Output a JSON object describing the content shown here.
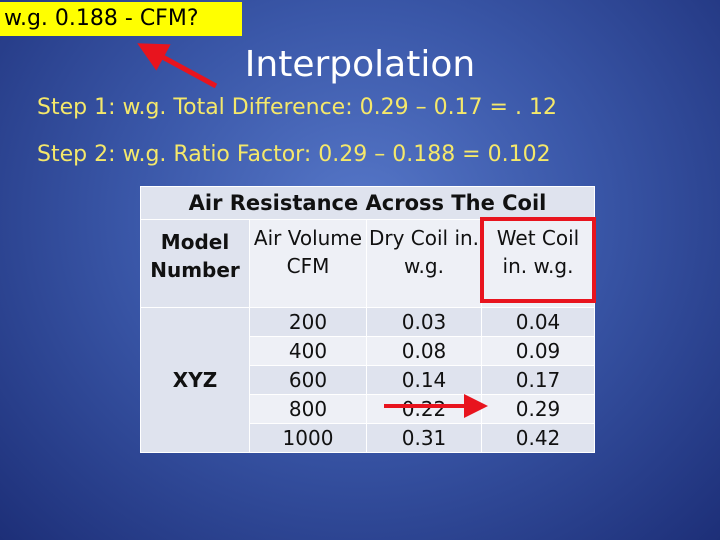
{
  "callout": "w.g. 0.188 - CFM?",
  "title": "Interpolation",
  "steps": [
    "Step 1: w.g. Total Difference: 0.29 – 0.17 = . 12",
    "Step 2: w.g. Ratio Factor: 0.29 – 0.188 = 0.102"
  ],
  "table": {
    "title": "Air Resistance Across The Coil",
    "headers": [
      "Model Number",
      "Air Volume CFM",
      "Dry Coil in. w.g.",
      "Wet Coil in. w.g."
    ],
    "model": "XYZ",
    "rows": [
      [
        200,
        0.03,
        0.04
      ],
      [
        400,
        0.08,
        0.09
      ],
      [
        600,
        0.14,
        0.17
      ],
      [
        800,
        0.22,
        0.29
      ],
      [
        1000,
        0.31,
        0.42
      ]
    ]
  }
}
